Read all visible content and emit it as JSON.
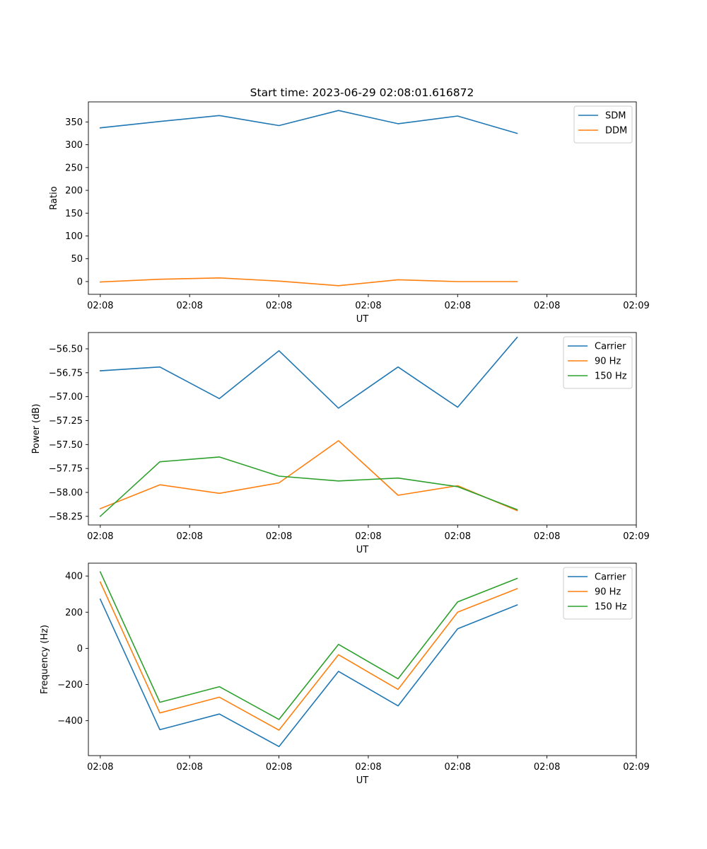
{
  "figure": {
    "title": "Start time: 2023-06-29 02:08:01.616872"
  },
  "colors": {
    "blue": "#1f77b4",
    "orange": "#ff7f0e",
    "green": "#2ca02c"
  },
  "chart_data": [
    {
      "type": "line",
      "title": "Start time: 2023-06-29 02:08:01.616872",
      "xlabel": "UT",
      "ylabel": "Ratio",
      "x": [
        1,
        2,
        3,
        4,
        5,
        6,
        7,
        8
      ],
      "xlim": [
        0.8,
        10.0
      ],
      "xticks": [
        1.0,
        2.5,
        4.0,
        5.5,
        7.0,
        8.5,
        10.0
      ],
      "xticklabels": [
        "02:08",
        "02:08",
        "02:08",
        "02:08",
        "02:08",
        "02:08",
        "02:09"
      ],
      "ylim": [
        -28,
        394
      ],
      "yticks": [
        0,
        50,
        100,
        150,
        200,
        250,
        300,
        350
      ],
      "yticklabels": [
        "0",
        "50",
        "100",
        "150",
        "200",
        "250",
        "300",
        "350"
      ],
      "legend": "top-right",
      "series": [
        {
          "name": "SDM",
          "color": "#1f77b4",
          "values": [
            337,
            351,
            364,
            342,
            375,
            346,
            363,
            325
          ]
        },
        {
          "name": "DDM",
          "color": "#ff7f0e",
          "values": [
            -1,
            5,
            8,
            1,
            -9,
            4,
            0,
            0
          ]
        }
      ]
    },
    {
      "type": "line",
      "xlabel": "UT",
      "ylabel": "Power (dB)",
      "x": [
        1,
        2,
        3,
        4,
        5,
        6,
        7,
        8
      ],
      "xlim": [
        0.8,
        10.0
      ],
      "xticks": [
        1.0,
        2.5,
        4.0,
        5.5,
        7.0,
        8.5,
        10.0
      ],
      "xticklabels": [
        "02:08",
        "02:08",
        "02:08",
        "02:08",
        "02:08",
        "02:08",
        "02:09"
      ],
      "ylim": [
        -58.34,
        -56.33
      ],
      "yticks": [
        -58.25,
        -58.0,
        -57.75,
        -57.5,
        -57.25,
        -57.0,
        -56.75,
        -56.5
      ],
      "yticklabels": [
        "−58.25",
        "−58.00",
        "−57.75",
        "−57.50",
        "−57.25",
        "−57.00",
        "−56.75",
        "−56.50"
      ],
      "legend": "top-right",
      "series": [
        {
          "name": "Carrier",
          "color": "#1f77b4",
          "values": [
            -56.73,
            -56.69,
            -57.02,
            -56.52,
            -57.12,
            -56.69,
            -57.11,
            -56.38
          ]
        },
        {
          "name": "90 Hz",
          "color": "#ff7f0e",
          "values": [
            -58.17,
            -57.92,
            -58.01,
            -57.9,
            -57.46,
            -58.03,
            -57.93,
            -58.19
          ]
        },
        {
          "name": "150 Hz",
          "color": "#2ca02c",
          "values": [
            -58.25,
            -57.68,
            -57.63,
            -57.83,
            -57.88,
            -57.85,
            -57.94,
            -58.18
          ]
        }
      ]
    },
    {
      "type": "line",
      "xlabel": "UT",
      "ylabel": "Frequency (Hz)",
      "x": [
        1,
        2,
        3,
        4,
        5,
        6,
        7,
        8
      ],
      "xlim": [
        0.8,
        10.0
      ],
      "xticks": [
        1.0,
        2.5,
        4.0,
        5.5,
        7.0,
        8.5,
        10.0
      ],
      "xticklabels": [
        "02:08",
        "02:08",
        "02:08",
        "02:08",
        "02:08",
        "02:08",
        "02:09"
      ],
      "ylim": [
        -593,
        471
      ],
      "yticks": [
        -400,
        -200,
        0,
        200,
        400
      ],
      "yticklabels": [
        "−400",
        "−200",
        "0",
        "200",
        "400"
      ],
      "legend": "top-right",
      "series": [
        {
          "name": "Carrier",
          "color": "#1f77b4",
          "values": [
            272,
            -450,
            -363,
            -543,
            -127,
            -318,
            108,
            240
          ]
        },
        {
          "name": "90 Hz",
          "color": "#ff7f0e",
          "values": [
            367,
            -357,
            -270,
            -452,
            -35,
            -227,
            200,
            330
          ]
        },
        {
          "name": "150 Hz",
          "color": "#2ca02c",
          "values": [
            423,
            -298,
            -212,
            -393,
            22,
            -168,
            257,
            387
          ]
        }
      ]
    }
  ]
}
